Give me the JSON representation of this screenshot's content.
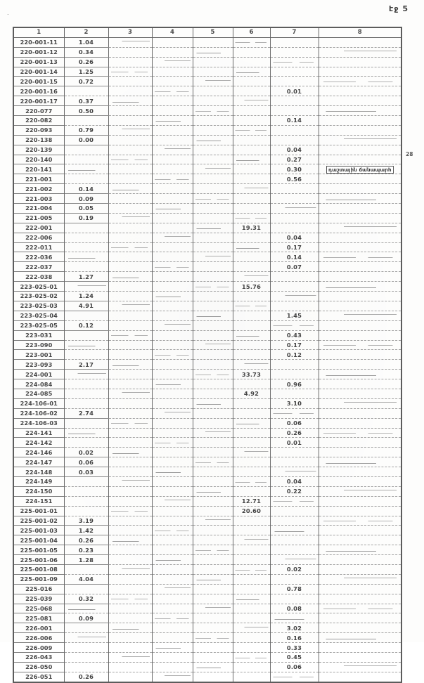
{
  "page": {
    "label": "էջ 5"
  },
  "table": {
    "headers": [
      "1",
      "2",
      "3",
      "4",
      "5",
      "6",
      "7",
      "8"
    ],
    "margin_note": "28",
    "rows": [
      {
        "c1": "220-001-11",
        "c2": "1.04"
      },
      {
        "c1": "220-001-12",
        "c2": "0.34"
      },
      {
        "c1": "220-001-13",
        "c2": "0.26"
      },
      {
        "c1": "220-001-14",
        "c2": "1.25"
      },
      {
        "c1": "220-001-15",
        "c2": "0.72"
      },
      {
        "c1": "220-001-16",
        "c7": "0.01"
      },
      {
        "c1": "220-001-17",
        "c2": "0.37"
      },
      {
        "c1": "220-077",
        "c2": "0.50"
      },
      {
        "c1": "220-082",
        "c7": "0.14"
      },
      {
        "c1": "220-093",
        "c2": "0.79"
      },
      {
        "c1": "220-138",
        "c2": "0.00"
      },
      {
        "c1": "220-139",
        "c7": "0.04"
      },
      {
        "c1": "220-140",
        "c7": "0.27"
      },
      {
        "c1": "220-141",
        "c7": "0.30",
        "c8": "դաշտային ճանապարհ"
      },
      {
        "c1": "221-001",
        "c7": "0.56"
      },
      {
        "c1": "221-002",
        "c2": "0.14"
      },
      {
        "c1": "221-003",
        "c2": "0.09"
      },
      {
        "c1": "221-004",
        "c2": "0.05"
      },
      {
        "c1": "221-005",
        "c2": "0.19"
      },
      {
        "c1": "222-001",
        "c6": "19.31"
      },
      {
        "c1": "222-006",
        "c7": "0.04"
      },
      {
        "c1": "222-011",
        "c7": "0.17"
      },
      {
        "c1": "222-036",
        "c7": "0.14"
      },
      {
        "c1": "222-037",
        "c7": "0.07"
      },
      {
        "c1": "222-038",
        "c2": "1.27"
      },
      {
        "c1": "223-025-01",
        "c6": "15.76"
      },
      {
        "c1": "223-025-02",
        "c2": "1.24"
      },
      {
        "c1": "223-025-03",
        "c2": "4.91"
      },
      {
        "c1": "223-025-04",
        "c7": "1.45"
      },
      {
        "c1": "223-025-05",
        "c2": "0.12"
      },
      {
        "c1": "223-031",
        "c7": "0.43"
      },
      {
        "c1": "223-090",
        "c7": "0.17"
      },
      {
        "c1": "223-001",
        "c7": "0.12"
      },
      {
        "c1": "223-093",
        "c2": "2.17"
      },
      {
        "c1": "224-001",
        "c6": "33.73"
      },
      {
        "c1": "224-084",
        "c7": "0.96"
      },
      {
        "c1": "224-085",
        "c6": "4.92"
      },
      {
        "c1": "224-106-01",
        "c7": "3.10"
      },
      {
        "c1": "224-106-02",
        "c2": "2.74"
      },
      {
        "c1": "224-106-03",
        "c7": "0.06"
      },
      {
        "c1": "224-141",
        "c7": "0.26"
      },
      {
        "c1": "224-142",
        "c7": "0.01"
      },
      {
        "c1": "224-146",
        "c2": "0.02"
      },
      {
        "c1": "224-147",
        "c2": "0.06"
      },
      {
        "c1": "224-148",
        "c2": "0.03"
      },
      {
        "c1": "224-149",
        "c7": "0.04"
      },
      {
        "c1": "224-150",
        "c7": "0.22"
      },
      {
        "c1": "224-151",
        "c6": "12.71"
      },
      {
        "c1": "225-001-01",
        "c6": "20.60"
      },
      {
        "c1": "225-001-02",
        "c2": "3.19"
      },
      {
        "c1": "225-001-03",
        "c2": "1.42"
      },
      {
        "c1": "225-001-04",
        "c2": "0.26"
      },
      {
        "c1": "225-001-05",
        "c2": "0.23"
      },
      {
        "c1": "225-001-06",
        "c2": "1.28"
      },
      {
        "c1": "225-001-08",
        "c7": "0.02"
      },
      {
        "c1": "225-001-09",
        "c2": "4.04"
      },
      {
        "c1": "225-016",
        "c7": "0.78"
      },
      {
        "c1": "225-039",
        "c2": "0.32"
      },
      {
        "c1": "225-068",
        "c7": "0.08"
      },
      {
        "c1": "225-081",
        "c2": "0.09"
      },
      {
        "c1": "226-001",
        "c7": "3.02"
      },
      {
        "c1": "226-006",
        "c7": "0.16"
      },
      {
        "c1": "226-009",
        "c7": "0.33"
      },
      {
        "c1": "226-043",
        "c7": "0.45"
      },
      {
        "c1": "226-050",
        "c7": "0.06"
      },
      {
        "c1": "226-051",
        "c2": "0.26"
      }
    ]
  }
}
